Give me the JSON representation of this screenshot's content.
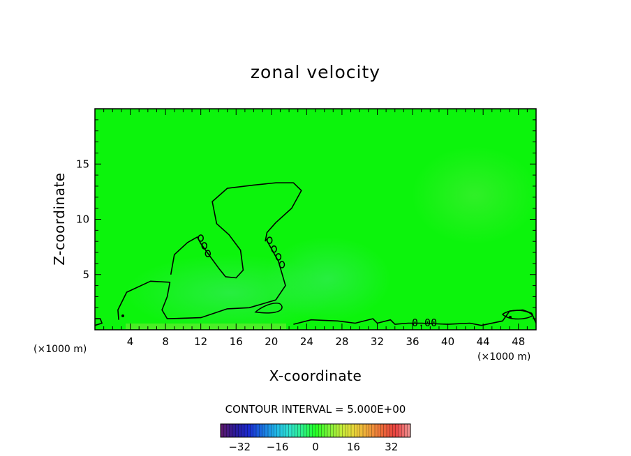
{
  "chart_data": {
    "type": "contour",
    "title": "zonal velocity",
    "xlabel": "X-coordinate",
    "ylabel": "Z-coordinate",
    "x_unit": "(×1000 m)",
    "x_unit_right": "(×1000 m)",
    "xlim": [
      0,
      50
    ],
    "ylim": [
      0,
      20
    ],
    "x_ticks": [
      4,
      8,
      12,
      16,
      20,
      24,
      28,
      32,
      36,
      40,
      44,
      48
    ],
    "y_ticks": [
      5,
      10,
      15
    ],
    "x_tick_labels": [
      "4",
      "8",
      "12",
      "16",
      "20",
      "24",
      "28",
      "32",
      "36",
      "40",
      "44",
      "48"
    ],
    "y_tick_labels": [
      "5",
      "10",
      "15"
    ],
    "contour_label": "0.00",
    "contour_interval_text": "CONTOUR INTERVAL = 5.000E+00",
    "contour_interval": 5.0,
    "background_value": 0,
    "colorbar": {
      "range": [
        -40,
        40
      ],
      "ticks": [
        -32,
        -16,
        0,
        16,
        32
      ],
      "tick_labels": [
        "−32",
        "−16",
        "0",
        "16",
        "32"
      ],
      "colors": [
        "#5a1a6e",
        "#2a1a9a",
        "#1a2ad0",
        "#1a70e0",
        "#20b4e8",
        "#2ee0d0",
        "#2ef08a",
        "#22ff22",
        "#7cf23a",
        "#c8ec3a",
        "#ecd23a",
        "#f0a03a",
        "#ec6a3a",
        "#e84040",
        "#f09090"
      ]
    },
    "zero_contour_lines": [
      {
        "name": "lower-left region",
        "points": [
          [
            2.7,
            0.9
          ],
          [
            2.6,
            1.8
          ],
          [
            3.6,
            3.4
          ],
          [
            6.3,
            4.4
          ],
          [
            8.5,
            4.3
          ],
          [
            8.2,
            3.0
          ],
          [
            7.6,
            1.8
          ],
          [
            8.2,
            1.0
          ],
          [
            12,
            1.1
          ],
          [
            15,
            1.9
          ],
          [
            17.5,
            2.0
          ],
          [
            20.5,
            2.7
          ],
          [
            21.6,
            4.0
          ],
          [
            20.8,
            6.2
          ],
          [
            19.4,
            8.2
          ]
        ]
      },
      {
        "name": "upper plume",
        "points": [
          [
            8.6,
            5.0
          ],
          [
            9.0,
            6.8
          ],
          [
            10.5,
            7.9
          ],
          [
            11.6,
            8.4
          ],
          [
            12,
            7.8
          ],
          [
            13,
            6.7
          ],
          [
            14,
            5.6
          ],
          [
            14.8,
            4.8
          ],
          [
            16,
            4.7
          ],
          [
            16.8,
            5.4
          ],
          [
            16.5,
            7.2
          ],
          [
            15.2,
            8.6
          ],
          [
            13.8,
            9.6
          ],
          [
            13.3,
            11.6
          ],
          [
            15,
            12.8
          ],
          [
            18,
            13.1
          ],
          [
            20.5,
            13.3
          ],
          [
            22.5,
            13.3
          ],
          [
            23.4,
            12.6
          ],
          [
            22.3,
            11.0
          ],
          [
            20.5,
            9.7
          ],
          [
            19.5,
            8.8
          ],
          [
            19.3,
            8.0
          ]
        ]
      },
      {
        "name": "surface contour",
        "points": [
          [
            22.5,
            0.5
          ],
          [
            24.5,
            0.9
          ],
          [
            27.5,
            0.8
          ],
          [
            29.5,
            0.6
          ],
          [
            31.5,
            1.0
          ],
          [
            32,
            0.6
          ],
          [
            33.5,
            0.9
          ],
          [
            34,
            0.5
          ],
          [
            35.5,
            0.6
          ],
          [
            37,
            0.6
          ],
          [
            40,
            0.5
          ],
          [
            42.5,
            0.6
          ],
          [
            43.8,
            0.4
          ],
          [
            46.2,
            0.8
          ],
          [
            47,
            1.7
          ],
          [
            48.5,
            1.8
          ],
          [
            49.5,
            1.5
          ],
          [
            50,
            0.6
          ]
        ]
      },
      {
        "name": "left edge small",
        "points": [
          [
            0,
            1.0
          ],
          [
            0.6,
            1.0
          ],
          [
            0.8,
            0.6
          ],
          [
            0,
            0.4
          ]
        ]
      }
    ]
  }
}
